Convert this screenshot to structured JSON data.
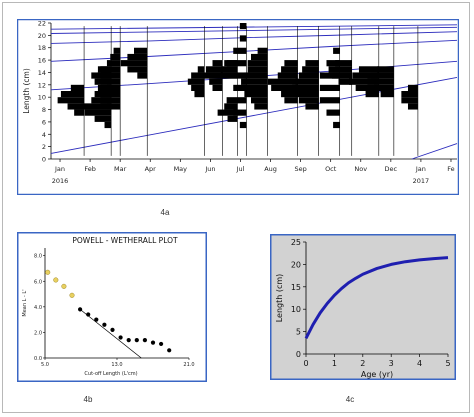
{
  "panels": {
    "a": {
      "caption": "4a"
    },
    "b": {
      "caption": "4b"
    },
    "c": {
      "caption": "4c"
    }
  },
  "chart_data": [
    {
      "id": "4a",
      "type": "bar",
      "ylabel": "Length (cm)",
      "yticks": [
        0,
        2,
        4,
        6,
        8,
        10,
        12,
        14,
        16,
        18,
        20,
        22
      ],
      "ylim": [
        0,
        22
      ],
      "month_labels": [
        "Jan",
        "Feb",
        "Mar",
        "Apr",
        "May",
        "Jun",
        "Jul",
        "Aug",
        "Sep",
        "Oct",
        "Nov",
        "Dec",
        "Jan",
        "Fe"
      ],
      "year_labels": [
        {
          "text": "2016",
          "month": 0
        },
        {
          "text": "2017",
          "month": 12
        }
      ],
      "xlim": [
        -0.3,
        13.2
      ],
      "grid": false,
      "colors": {
        "bars": "#000000",
        "curves": "#2d2dbd",
        "border": "#3a66c4"
      },
      "histograms": [
        {
          "month": 0.8,
          "bins": [
            [
              7,
              1.5
            ],
            [
              8,
              2.5
            ],
            [
              9,
              4
            ],
            [
              10,
              3.5
            ],
            [
              11,
              2
            ]
          ]
        },
        {
          "month": 1.7,
          "bins": [
            [
              5,
              1
            ],
            [
              6,
              2.5
            ],
            [
              7,
              4
            ],
            [
              8,
              4.5
            ],
            [
              9,
              3
            ],
            [
              10,
              2.5
            ],
            [
              11,
              2
            ],
            [
              12,
              2.5
            ],
            [
              13,
              3
            ],
            [
              14,
              2
            ]
          ]
        },
        {
          "month": 2.0,
          "bins": [
            [
              8,
              2
            ],
            [
              9,
              3
            ],
            [
              10,
              3
            ],
            [
              11,
              2
            ],
            [
              12,
              3
            ],
            [
              13,
              3.5
            ],
            [
              14,
              3
            ],
            [
              15,
              2
            ],
            [
              16,
              1.5
            ],
            [
              17,
              1
            ]
          ]
        },
        {
          "month": 2.9,
          "bins": [
            [
              13,
              1.5
            ],
            [
              14,
              3
            ],
            [
              15,
              4
            ],
            [
              16,
              3
            ],
            [
              17,
              2
            ]
          ]
        },
        {
          "month": 4.8,
          "bins": [
            [
              10,
              1.5
            ],
            [
              11,
              2
            ],
            [
              12,
              2.5
            ],
            [
              13,
              2
            ],
            [
              14,
              1
            ]
          ]
        },
        {
          "month": 5.4,
          "bins": [
            [
              11,
              1.5
            ],
            [
              12,
              2
            ],
            [
              13,
              3
            ],
            [
              14,
              2.5
            ],
            [
              15,
              1.5
            ]
          ]
        },
        {
          "month": 5.9,
          "bins": [
            [
              6,
              1.5
            ],
            [
              7,
              3
            ],
            [
              8,
              2
            ],
            [
              13,
              2
            ],
            [
              14,
              2.5
            ],
            [
              15,
              2
            ]
          ]
        },
        {
          "month": 6.2,
          "bins": [
            [
              5,
              1
            ],
            [
              7,
              2
            ],
            [
              9,
              3
            ],
            [
              11,
              2
            ],
            [
              13,
              4
            ],
            [
              15,
              3
            ],
            [
              17,
              2
            ],
            [
              19,
              1
            ],
            [
              21,
              1
            ]
          ]
        },
        {
          "month": 6.9,
          "bins": [
            [
              8,
              2
            ],
            [
              9,
              2.5
            ],
            [
              10,
              3.5
            ],
            [
              11,
              4
            ],
            [
              12,
              4
            ],
            [
              13,
              3.5
            ],
            [
              14,
              3
            ],
            [
              15,
              3
            ],
            [
              16,
              2.5
            ],
            [
              17,
              1.5
            ]
          ]
        },
        {
          "month": 7.9,
          "bins": [
            [
              9,
              2
            ],
            [
              10,
              2.5
            ],
            [
              11,
              4
            ],
            [
              12,
              4.5
            ],
            [
              13,
              3
            ],
            [
              14,
              2.5
            ],
            [
              15,
              2
            ]
          ]
        },
        {
          "month": 8.6,
          "bins": [
            [
              8,
              2
            ],
            [
              9,
              3
            ],
            [
              10,
              3.5
            ],
            [
              11,
              4
            ],
            [
              12,
              3.5
            ],
            [
              13,
              3
            ],
            [
              14,
              2.5
            ],
            [
              15,
              2
            ]
          ]
        },
        {
          "month": 9.3,
          "bins": [
            [
              5,
              1
            ],
            [
              7,
              2
            ],
            [
              9,
              3
            ],
            [
              11,
              3
            ],
            [
              13,
              3
            ],
            [
              15,
              2
            ],
            [
              17,
              1
            ]
          ]
        },
        {
          "month": 9.7,
          "bins": [
            [
              12,
              2
            ],
            [
              13,
              3
            ],
            [
              14,
              3.5
            ],
            [
              15,
              2.5
            ]
          ]
        },
        {
          "month": 10.6,
          "bins": [
            [
              10,
              2
            ],
            [
              11,
              3.5
            ],
            [
              12,
              4.5
            ],
            [
              13,
              4
            ],
            [
              14,
              3
            ]
          ]
        },
        {
          "month": 11.1,
          "bins": [
            [
              10,
              2
            ],
            [
              11,
              3
            ],
            [
              12,
              4
            ],
            [
              13,
              3.5
            ],
            [
              14,
              2.5
            ]
          ]
        },
        {
          "month": 11.9,
          "bins": [
            [
              8,
              1.5
            ],
            [
              9,
              2.5
            ],
            [
              10,
              2.5
            ],
            [
              11,
              1.5
            ]
          ]
        }
      ],
      "growth_curves": [
        {
          "x": [
            -0.3,
            13.2
          ],
          "y": [
            0.9,
            13.2
          ]
        },
        {
          "x": [
            -0.3,
            3,
            6,
            9,
            13.2
          ],
          "y": [
            11.2,
            12.2,
            13.2,
            14.2,
            15.8
          ]
        },
        {
          "x": [
            -0.3,
            3,
            6,
            9,
            13.2
          ],
          "y": [
            15.8,
            16.6,
            17.4,
            18.2,
            19.2
          ]
        },
        {
          "x": [
            -0.3,
            3,
            6,
            9,
            13.2
          ],
          "y": [
            18.7,
            19.1,
            19.6,
            20.0,
            20.6
          ]
        },
        {
          "x": [
            -0.3,
            13.2
          ],
          "y": [
            20.3,
            21.3
          ]
        },
        {
          "x": [
            -0.3,
            13.2
          ],
          "y": [
            21.0,
            21.7
          ]
        },
        {
          "x": [
            11.7,
            13.2
          ],
          "y": [
            0.0,
            2.5
          ]
        }
      ]
    },
    {
      "id": "4b",
      "type": "scatter",
      "title": "POWELL - WETHERALL PLOT",
      "xlabel": "Cut-off Length (L'cm)",
      "ylabel": "Mean L - L'",
      "xticks": [
        5.0,
        13.0,
        21.0
      ],
      "yticks": [
        0.0,
        2.0,
        4.0,
        6.0,
        8.0
      ],
      "xlim": [
        5.0,
        21.0
      ],
      "ylim": [
        0,
        8.6
      ],
      "colors": {
        "excluded": "#e8d060",
        "included": "#000000",
        "border": "#3a66c4"
      },
      "points_excluded": [
        [
          5.3,
          6.7
        ],
        [
          6.2,
          6.1
        ],
        [
          7.1,
          5.6
        ],
        [
          8.0,
          4.9
        ]
      ],
      "points_included": [
        [
          8.9,
          3.8
        ],
        [
          9.8,
          3.4
        ],
        [
          10.7,
          3.0
        ],
        [
          11.6,
          2.6
        ],
        [
          12.5,
          2.2
        ],
        [
          13.4,
          1.6
        ],
        [
          14.3,
          1.4
        ],
        [
          15.2,
          1.4
        ],
        [
          16.1,
          1.4
        ],
        [
          17.0,
          1.2
        ],
        [
          17.9,
          1.1
        ],
        [
          18.8,
          0.6
        ]
      ],
      "regression": {
        "x": [
          8.9,
          15.7
        ],
        "y": [
          3.8,
          0.0
        ]
      }
    },
    {
      "id": "4c",
      "type": "line",
      "xlabel": "Age (yr)",
      "ylabel": "Length (cm)",
      "xticks": [
        0,
        1,
        2,
        3,
        4,
        5
      ],
      "yticks": [
        0,
        5,
        10,
        15,
        20,
        25
      ],
      "xlim": [
        0,
        5
      ],
      "ylim": [
        0,
        25
      ],
      "colors": {
        "background": "#d2d2d2",
        "line": "#1f1fb0",
        "border": "#3a66c4"
      },
      "x": [
        0,
        0.25,
        0.5,
        0.75,
        1,
        1.25,
        1.5,
        1.75,
        2,
        2.5,
        3,
        3.5,
        4,
        4.5,
        5
      ],
      "y": [
        3.5,
        6.6,
        9.2,
        11.3,
        13.1,
        14.6,
        15.9,
        16.9,
        17.8,
        19.1,
        20.0,
        20.6,
        21.0,
        21.3,
        21.5
      ]
    }
  ]
}
